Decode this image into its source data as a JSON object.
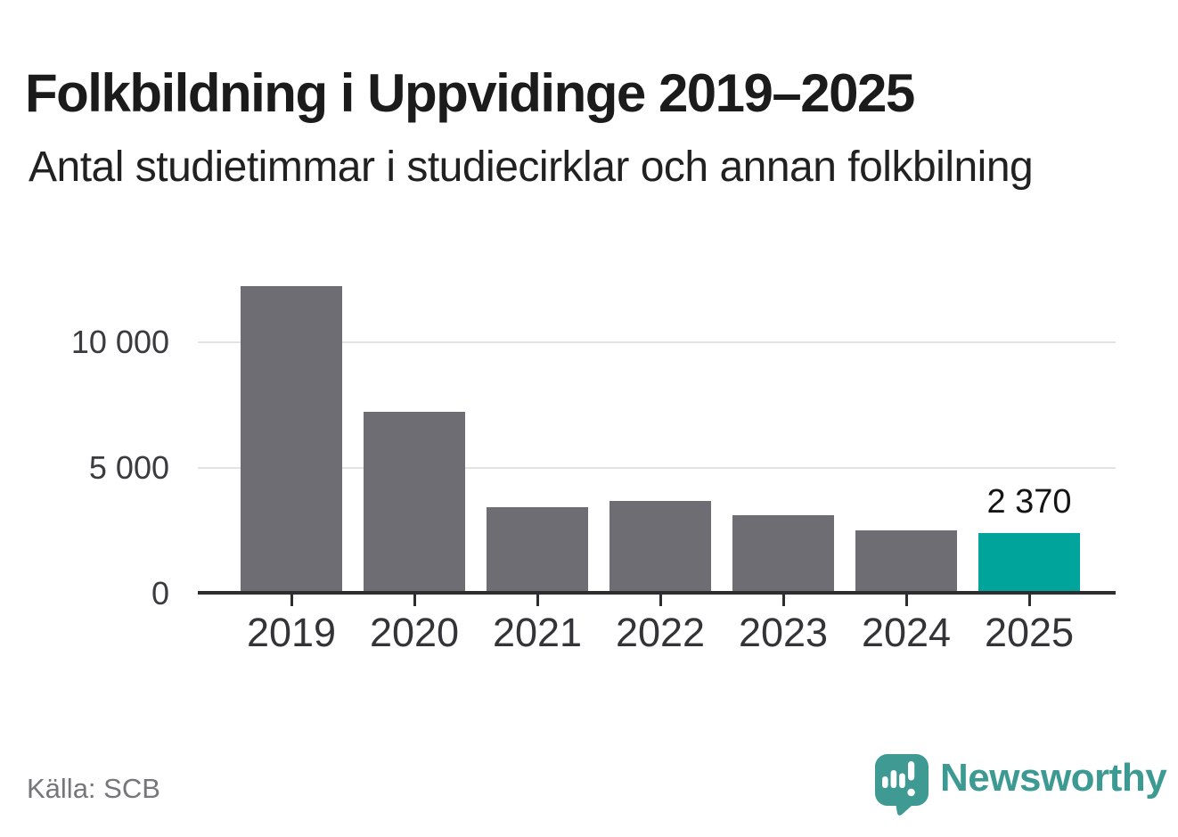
{
  "header": {
    "title": "Folkbildning i Uppvidinge 2019–2025",
    "subtitle": "Antal studietimmar i studiecirklar och annan folkbilning"
  },
  "chart_data": {
    "type": "bar",
    "title": "Folkbildning i Uppvidinge 2019–2025",
    "subtitle": "Antal studietimmar i studiecirklar och annan folkbilning",
    "categories": [
      "2019",
      "2020",
      "2021",
      "2022",
      "2023",
      "2024",
      "2025"
    ],
    "values": [
      12200,
      7200,
      3400,
      3650,
      3100,
      2480,
      2370
    ],
    "highlight_index": 6,
    "value_label": {
      "index": 6,
      "text": "2 370"
    },
    "yticks": [
      {
        "value": 0,
        "label": "0"
      },
      {
        "value": 5000,
        "label": "5 000"
      },
      {
        "value": 10000,
        "label": "10 000"
      }
    ],
    "ylim": [
      0,
      12900
    ],
    "xlabel": "",
    "ylabel": "",
    "grid": "horizontal",
    "legend": "none",
    "bar_color": "#6d6d73",
    "highlight_color": "#00a49a"
  },
  "footer": {
    "source": "Källa: SCB",
    "brand": "Newsworthy"
  },
  "colors": {
    "background": "#ffffff",
    "title_text": "#1b1b1b",
    "axis_line": "#2d2d2f",
    "grid_line": "#e3e3e4",
    "tick_text": "#333338",
    "source_text": "#76767a",
    "brand_teal": "#3d9a93"
  }
}
